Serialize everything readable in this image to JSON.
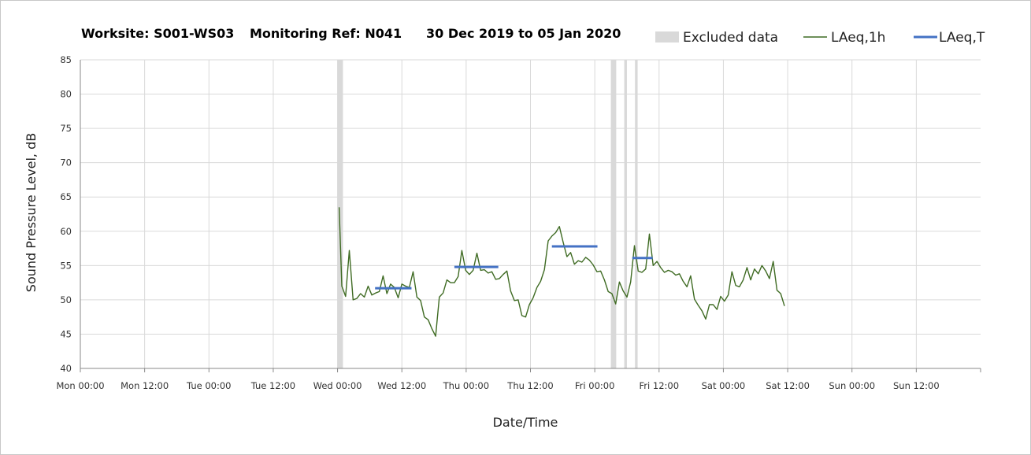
{
  "chart_data": {
    "type": "line",
    "title": {
      "site": "Worksite: S001-WS03",
      "ref": "Monitoring Ref: N041",
      "period": "30 Dec 2019 to 05 Jan 2020"
    },
    "xlabel": "Date/Time",
    "ylabel": "Sound Pressure Level, dB",
    "ylim": [
      40,
      85
    ],
    "yticks": [
      40,
      45,
      50,
      55,
      60,
      65,
      70,
      75,
      80,
      85
    ],
    "x_unit": "hours from Mon 00:00",
    "xlim": [
      0,
      168
    ],
    "xticks": [
      {
        "x": 0,
        "label": "Mon 00:00"
      },
      {
        "x": 12,
        "label": "Mon 12:00"
      },
      {
        "x": 24,
        "label": "Tue 00:00"
      },
      {
        "x": 36,
        "label": "Tue 12:00"
      },
      {
        "x": 48,
        "label": "Wed 00:00"
      },
      {
        "x": 60,
        "label": "Wed 12:00"
      },
      {
        "x": 72,
        "label": "Thu 00:00"
      },
      {
        "x": 84,
        "label": "Thu 12:00"
      },
      {
        "x": 96,
        "label": "Fri 00:00"
      },
      {
        "x": 108,
        "label": "Fri 12:00"
      },
      {
        "x": 120,
        "label": "Sat 00:00"
      },
      {
        "x": 132,
        "label": "Sat 12:00"
      },
      {
        "x": 144,
        "label": "Sun 00:00"
      },
      {
        "x": 156,
        "label": "Sun 12:00"
      }
    ],
    "vertical_grid": true,
    "horizontal_grid": true,
    "legend": {
      "placement": "top-right",
      "items": [
        "Excluded data",
        "LAeq,1h",
        "LAeq,T"
      ]
    },
    "colors": {
      "excluded": "#d9d9d9",
      "laeq_1h": "#3f6b23",
      "laeq_t": "#4472c4"
    },
    "excluded_ranges": [
      [
        48.0,
        49.0
      ],
      [
        99.0,
        100.0
      ],
      [
        101.5,
        102.0
      ],
      [
        103.5,
        104.0
      ]
    ],
    "series": [
      {
        "name": "LAeq,1h",
        "points": [
          [
            48.3,
            63.5
          ],
          [
            48.8,
            52
          ],
          [
            49.5,
            50.5
          ],
          [
            50.2,
            57.2
          ],
          [
            50.9,
            50
          ],
          [
            51.6,
            50.2
          ],
          [
            52.3,
            50.9
          ],
          [
            53,
            50.4
          ],
          [
            53.7,
            52
          ],
          [
            54.4,
            50.7
          ],
          [
            55.1,
            51
          ],
          [
            55.8,
            51.2
          ],
          [
            56.5,
            53.5
          ],
          [
            57.2,
            50.9
          ],
          [
            57.9,
            52.3
          ],
          [
            58.6,
            51.8
          ],
          [
            59.3,
            50.3
          ],
          [
            60,
            52.3
          ],
          [
            60.7,
            52
          ],
          [
            61.4,
            51.8
          ],
          [
            62.1,
            54.1
          ],
          [
            62.8,
            50.4
          ],
          [
            63.5,
            49.9
          ],
          [
            64.2,
            47.5
          ],
          [
            64.9,
            47.1
          ],
          [
            65.6,
            45.8
          ],
          [
            66.3,
            44.7
          ],
          [
            67,
            50.4
          ],
          [
            67.7,
            51
          ],
          [
            68.4,
            52.9
          ],
          [
            69.1,
            52.5
          ],
          [
            69.8,
            52.5
          ],
          [
            70.5,
            53.4
          ],
          [
            71.2,
            57.2
          ],
          [
            71.9,
            54.3
          ],
          [
            72.6,
            53.7
          ],
          [
            73.3,
            54.3
          ],
          [
            74,
            56.8
          ],
          [
            74.7,
            54.3
          ],
          [
            75.4,
            54.4
          ],
          [
            76.1,
            53.9
          ],
          [
            76.8,
            54.1
          ],
          [
            77.5,
            53
          ],
          [
            78.2,
            53.1
          ],
          [
            78.9,
            53.7
          ],
          [
            79.6,
            54.2
          ],
          [
            80.3,
            51.3
          ],
          [
            81,
            49.9
          ],
          [
            81.7,
            50
          ],
          [
            82.4,
            47.7
          ],
          [
            83.1,
            47.5
          ],
          [
            83.8,
            49.3
          ],
          [
            84.5,
            50.3
          ],
          [
            85.2,
            51.8
          ],
          [
            85.9,
            52.7
          ],
          [
            86.6,
            54.4
          ],
          [
            87.3,
            58.6
          ],
          [
            88,
            59.3
          ],
          [
            88.7,
            59.8
          ],
          [
            89.4,
            60.7
          ],
          [
            90.1,
            58.4
          ],
          [
            90.8,
            56.3
          ],
          [
            91.5,
            56.9
          ],
          [
            92.2,
            55.2
          ],
          [
            92.9,
            55.7
          ],
          [
            93.6,
            55.5
          ],
          [
            94.3,
            56.2
          ],
          [
            95,
            55.8
          ],
          [
            95.7,
            55.1
          ],
          [
            96.4,
            54.1
          ],
          [
            97.1,
            54.2
          ],
          [
            97.8,
            52.9
          ],
          [
            98.5,
            51.2
          ],
          [
            99.2,
            50.9
          ],
          [
            99.9,
            49.4
          ],
          [
            100.6,
            52.6
          ],
          [
            101.3,
            51.3
          ],
          [
            102,
            50.4
          ],
          [
            102.7,
            52.6
          ],
          [
            103.4,
            57.9
          ],
          [
            104.1,
            54.2
          ],
          [
            104.8,
            54
          ],
          [
            105.5,
            54.5
          ],
          [
            106.2,
            59.6
          ],
          [
            106.9,
            55
          ],
          [
            107.6,
            55.6
          ],
          [
            108.3,
            54.7
          ],
          [
            109,
            54
          ],
          [
            109.7,
            54.3
          ],
          [
            110.4,
            54.1
          ],
          [
            111.1,
            53.6
          ],
          [
            111.8,
            53.8
          ],
          [
            112.5,
            52.7
          ],
          [
            113.2,
            51.9
          ],
          [
            113.9,
            53.5
          ],
          [
            114.6,
            50.1
          ],
          [
            115.3,
            49.2
          ],
          [
            116,
            48.4
          ],
          [
            116.7,
            47.2
          ],
          [
            117.4,
            49.3
          ],
          [
            118.1,
            49.3
          ],
          [
            118.8,
            48.6
          ],
          [
            119.5,
            50.5
          ],
          [
            120.2,
            49.8
          ],
          [
            120.9,
            50.7
          ],
          [
            121.6,
            54.1
          ],
          [
            122.3,
            52.1
          ],
          [
            123,
            51.9
          ],
          [
            123.7,
            52.9
          ],
          [
            124.4,
            54.7
          ],
          [
            125.1,
            52.9
          ],
          [
            125.8,
            54.5
          ],
          [
            126.5,
            53.8
          ],
          [
            127.2,
            55
          ],
          [
            127.9,
            54.2
          ],
          [
            128.6,
            53.1
          ],
          [
            129.3,
            55.6
          ],
          [
            130,
            51.4
          ],
          [
            130.7,
            50.9
          ],
          [
            131.4,
            49.1
          ]
        ]
      },
      {
        "name": "LAeq,T",
        "segments": [
          {
            "x0": 55,
            "x1": 61.8,
            "y": 51.7
          },
          {
            "x0": 69.8,
            "x1": 78,
            "y": 54.8
          },
          {
            "x0": 88,
            "x1": 96.5,
            "y": 57.8
          },
          {
            "x0": 103,
            "x1": 106.8,
            "y": 56.1
          }
        ]
      }
    ]
  }
}
